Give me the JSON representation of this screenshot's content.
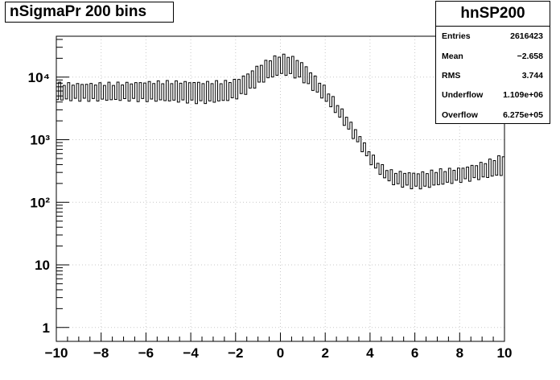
{
  "chart_data": {
    "type": "histogram",
    "title": "nSigmaPr 200 bins",
    "histogram_name": "hnSP200",
    "xlim": [
      -10,
      10
    ],
    "ylim": [
      0.6,
      45000
    ],
    "y_log_scale": true,
    "grid": true,
    "x_ticks": [
      -10,
      -8,
      -6,
      -4,
      -2,
      0,
      2,
      4,
      6,
      8,
      10
    ],
    "x_tick_labels": [
      "−10",
      "−8",
      "−6",
      "−4",
      "−2",
      "0",
      "2",
      "4",
      "6",
      "8",
      "10"
    ],
    "y_ticks": [
      1,
      10,
      100,
      1000,
      10000
    ],
    "y_tick_labels": [
      "1",
      "10",
      "10²",
      "10³",
      "10⁴"
    ],
    "stats": {
      "Entries": "2616423",
      "Mean": "−2.658",
      "RMS": "3.744",
      "Underflow": "1.109e+06",
      "Overflow": "6.275e+05"
    },
    "bin_edges": {
      "start": -10,
      "end": 10,
      "count": 200
    },
    "profile": {
      "x": [
        -10,
        -9,
        -8,
        -7,
        -6,
        -5,
        -4,
        -3.5,
        -3,
        -2.5,
        -2,
        -1.5,
        -1,
        -0.5,
        0,
        0.5,
        1,
        1.5,
        2,
        2.5,
        3,
        3.5,
        4,
        4.5,
        5,
        5.5,
        6,
        6.5,
        7,
        7.5,
        8,
        8.5,
        9,
        9.5,
        10
      ],
      "base": [
        4200,
        4200,
        4200,
        4300,
        4300,
        4300,
        4200,
        4100,
        4200,
        4400,
        4800,
        6000,
        8000,
        10000,
        11500,
        11000,
        9000,
        6200,
        4200,
        2600,
        1450,
        800,
        420,
        260,
        190,
        175,
        165,
        168,
        185,
        200,
        215,
        230,
        245,
        265,
        285
      ],
      "spike": [
        8200,
        8000,
        8000,
        8000,
        8200,
        8200,
        8000,
        7800,
        8000,
        8000,
        8600,
        10500,
        14500,
        18500,
        22000,
        21000,
        16500,
        10500,
        6800,
        4000,
        2300,
        1250,
        650,
        400,
        320,
        310,
        300,
        310,
        330,
        340,
        350,
        380,
        420,
        480,
        560
      ]
    }
  }
}
